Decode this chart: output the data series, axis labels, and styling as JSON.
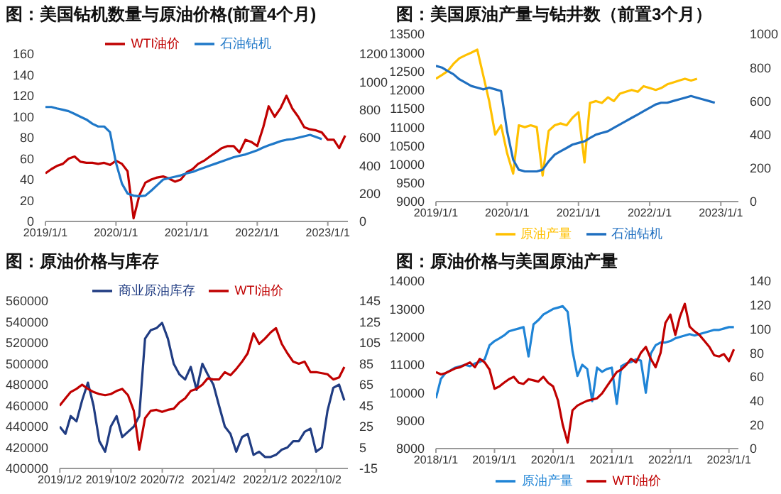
{
  "chart_data": [
    {
      "type": "line",
      "title": "图：美国钻机数量与原油价格(前置4个月)",
      "legend": "top",
      "x": [
        "2019-01",
        "2019-02",
        "2019-03",
        "2019-04",
        "2019-05",
        "2019-06",
        "2019-07",
        "2019-08",
        "2019-09",
        "2019-10",
        "2019-11",
        "2019-12",
        "2020-01",
        "2020-02",
        "2020-03",
        "2020-04",
        "2020-05",
        "2020-06",
        "2020-07",
        "2020-08",
        "2020-09",
        "2020-10",
        "2020-11",
        "2020-12",
        "2021-01",
        "2021-02",
        "2021-03",
        "2021-04",
        "2021-05",
        "2021-06",
        "2021-07",
        "2021-08",
        "2021-09",
        "2021-10",
        "2021-11",
        "2021-12",
        "2022-01",
        "2022-02",
        "2022-03",
        "2022-04",
        "2022-05",
        "2022-06",
        "2022-07",
        "2022-08",
        "2022-09",
        "2022-10",
        "2022-11",
        "2022-12",
        "2023-01",
        "2023-02",
        "2023-03",
        "2023-04"
      ],
      "xlim": [
        "2019-01-01",
        "2023-04-15"
      ],
      "xticks": [
        {
          "value": "2019-01-01",
          "label": "2019/1/1"
        },
        {
          "value": "2020-01-01",
          "label": "2020/1/1"
        },
        {
          "value": "2021-01-01",
          "label": "2021/1/1"
        },
        {
          "value": "2022-01-01",
          "label": "2022/1/1"
        },
        {
          "value": "2023-01-01",
          "label": "2023/1/1"
        }
      ],
      "ylim": [
        0,
        160
      ],
      "yticks": [
        0,
        20,
        40,
        60,
        80,
        100,
        120,
        140,
        160
      ],
      "y2lim": [
        0,
        1200
      ],
      "y2ticks": [
        0,
        200,
        400,
        600,
        800,
        1000,
        1200
      ],
      "series": [
        {
          "name": "WTI油价",
          "color": "#c00000",
          "values": [
            46,
            50,
            53,
            55,
            60,
            62,
            57,
            56,
            56,
            55,
            56,
            54,
            58,
            55,
            48,
            3,
            25,
            37,
            40,
            42,
            43,
            41,
            38,
            40,
            47,
            50,
            55,
            58,
            62,
            66,
            70,
            72,
            72,
            66,
            78,
            76,
            72,
            90,
            110,
            100,
            108,
            120,
            108,
            100,
            90,
            88,
            87,
            85,
            78,
            78,
            70,
            82
          ]
        },
        {
          "name": "石油钻机",
          "color": "#1f78c8",
          "axis": "y2",
          "values": [
            820,
            820,
            810,
            800,
            790,
            770,
            750,
            730,
            700,
            680,
            680,
            640,
            420,
            270,
            200,
            185,
            180,
            185,
            220,
            260,
            300,
            310,
            320,
            330,
            345,
            355,
            370,
            385,
            400,
            415,
            430,
            445,
            460,
            470,
            480,
            495,
            510,
            530,
            545,
            560,
            575,
            585,
            590,
            600,
            610,
            620,
            605,
            590,
            null,
            null,
            null,
            null
          ]
        }
      ]
    },
    {
      "type": "line",
      "title": "图：美国原油产量与钻井数（前置3个月）",
      "legend": "bottom",
      "x": [
        "2019-01",
        "2019-02",
        "2019-03",
        "2019-04",
        "2019-05",
        "2019-06",
        "2019-07",
        "2019-08",
        "2019-09",
        "2019-10",
        "2019-11",
        "2019-12",
        "2020-01",
        "2020-02",
        "2020-03",
        "2020-04",
        "2020-05",
        "2020-06",
        "2020-07",
        "2020-08",
        "2020-09",
        "2020-10",
        "2020-11",
        "2020-12",
        "2021-01",
        "2021-02",
        "2021-03",
        "2021-04",
        "2021-05",
        "2021-06",
        "2021-07",
        "2021-08",
        "2021-09",
        "2021-10",
        "2021-11",
        "2021-12",
        "2022-01",
        "2022-02",
        "2022-03",
        "2022-04",
        "2022-05",
        "2022-06",
        "2022-07",
        "2022-08",
        "2022-09",
        "2022-10",
        "2022-11",
        "2022-12"
      ],
      "xlim": [
        "2019-01-01",
        "2023-04-01"
      ],
      "xticks": [
        {
          "value": "2019-01-01",
          "label": "2019/1/1"
        },
        {
          "value": "2020-01-01",
          "label": "2020/1/1"
        },
        {
          "value": "2021-01-01",
          "label": "2021/1/1"
        },
        {
          "value": "2022-01-01",
          "label": "2022/1/1"
        },
        {
          "value": "2023-01-01",
          "label": "2023/1/1"
        }
      ],
      "ylim": [
        9000,
        13500
      ],
      "yticks": [
        9000,
        9500,
        10000,
        10500,
        11000,
        11500,
        12000,
        12500,
        13000,
        13500
      ],
      "y2lim": [
        0,
        1000
      ],
      "y2ticks": [
        0,
        200,
        400,
        600,
        800,
        1000
      ],
      "series": [
        {
          "name": "原油产量",
          "color": "#ffc000",
          "values": [
            12300,
            12400,
            12500,
            12700,
            12850,
            12930,
            13000,
            13080,
            12380,
            11700,
            10800,
            11050,
            10300,
            9750,
            11050,
            11000,
            11050,
            11000,
            9700,
            10900,
            11050,
            11100,
            11050,
            11250,
            11400,
            10050,
            11650,
            11700,
            11650,
            11800,
            11700,
            11900,
            11950,
            12000,
            11950,
            12100,
            12050,
            12000,
            12050,
            12150,
            12200,
            12250,
            12300,
            12250,
            12300,
            null,
            null,
            null
          ]
        },
        {
          "name": "石油钻机",
          "color": "#1f6fc0",
          "axis": "y2",
          "values": [
            810,
            800,
            780,
            760,
            730,
            710,
            690,
            680,
            670,
            680,
            670,
            660,
            420,
            250,
            190,
            180,
            180,
            180,
            190,
            240,
            280,
            300,
            320,
            340,
            350,
            360,
            380,
            400,
            410,
            420,
            440,
            460,
            480,
            500,
            520,
            540,
            560,
            580,
            590,
            590,
            600,
            610,
            620,
            630,
            620,
            610,
            600,
            590
          ]
        }
      ]
    },
    {
      "type": "line",
      "title": "图：原油价格与库存",
      "legend": "top",
      "x": [
        "2019-01",
        "2019-02",
        "2019-03",
        "2019-04",
        "2019-05",
        "2019-06",
        "2019-07",
        "2019-08",
        "2019-09",
        "2019-10",
        "2019-11",
        "2019-12",
        "2020-01",
        "2020-02",
        "2020-03",
        "2020-04",
        "2020-05",
        "2020-06",
        "2020-07",
        "2020-08",
        "2020-09",
        "2020-10",
        "2020-11",
        "2020-12",
        "2021-01",
        "2021-02",
        "2021-03",
        "2021-04",
        "2021-05",
        "2021-06",
        "2021-07",
        "2021-08",
        "2021-09",
        "2021-10",
        "2021-11",
        "2021-12",
        "2022-01",
        "2022-02",
        "2022-03",
        "2022-04",
        "2022-05",
        "2022-06",
        "2022-07",
        "2022-08",
        "2022-09",
        "2022-10",
        "2022-11",
        "2022-12",
        "2023-01",
        "2023-02",
        "2023-03"
      ],
      "xlim": [
        "2019-01-01",
        "2023-03-20"
      ],
      "xticks": [
        {
          "value": "2019-01-02",
          "label": "2019/1/2"
        },
        {
          "value": "2019-10-02",
          "label": "2019/10/2"
        },
        {
          "value": "2020-07-02",
          "label": "2020/7/2"
        },
        {
          "value": "2021-04-02",
          "label": "2021/4/2"
        },
        {
          "value": "2022-01-02",
          "label": "2022/1/2"
        },
        {
          "value": "2022-10-02",
          "label": "2022/10/2"
        }
      ],
      "ylim": [
        400000,
        560000
      ],
      "yticks": [
        400000,
        420000,
        440000,
        460000,
        480000,
        500000,
        520000,
        540000,
        560000
      ],
      "y2lim": [
        -15,
        145
      ],
      "y2ticks": [
        -15,
        5,
        25,
        45,
        65,
        85,
        105,
        125,
        145
      ],
      "series": [
        {
          "name": "商业原油库存",
          "color": "#203c82",
          "values": [
            440000,
            433000,
            450000,
            445000,
            465000,
            482000,
            460000,
            426000,
            416000,
            440000,
            450000,
            430000,
            435000,
            440000,
            450000,
            524000,
            532000,
            534000,
            539000,
            524000,
            500000,
            490000,
            485000,
            497000,
            475000,
            500000,
            490000,
            480000,
            460000,
            440000,
            433000,
            416000,
            430000,
            433000,
            413000,
            416000,
            411000,
            411000,
            413000,
            418000,
            420000,
            426000,
            426000,
            435000,
            438000,
            416000,
            420000,
            455000,
            477000,
            480000,
            465000
          ]
        },
        {
          "name": "WTI油价",
          "color": "#c00000",
          "axis": "y2",
          "values": [
            45,
            52,
            58,
            61,
            65,
            61,
            58,
            56,
            55,
            56,
            59,
            61,
            55,
            40,
            3,
            33,
            40,
            41,
            39,
            41,
            42,
            48,
            52,
            59,
            61,
            65,
            71,
            70,
            70,
            77,
            74,
            80,
            87,
            95,
            114,
            104,
            109,
            115,
            119,
            104,
            95,
            87,
            85,
            87,
            77,
            77,
            76,
            75,
            70,
            72,
            82
          ]
        }
      ]
    },
    {
      "type": "line",
      "title": "图：原油价格与美国原油产量",
      "legend": "bottom",
      "x": [
        "2018-01",
        "2018-02",
        "2018-03",
        "2018-04",
        "2018-05",
        "2018-06",
        "2018-07",
        "2018-08",
        "2018-09",
        "2018-10",
        "2018-11",
        "2018-12",
        "2019-01",
        "2019-02",
        "2019-03",
        "2019-04",
        "2019-05",
        "2019-06",
        "2019-07",
        "2019-08",
        "2019-09",
        "2019-10",
        "2019-11",
        "2019-12",
        "2020-01",
        "2020-02",
        "2020-03",
        "2020-04",
        "2020-05",
        "2020-06",
        "2020-07",
        "2020-08",
        "2020-09",
        "2020-10",
        "2020-11",
        "2020-12",
        "2021-01",
        "2021-02",
        "2021-03",
        "2021-04",
        "2021-05",
        "2021-06",
        "2021-07",
        "2021-08",
        "2021-09",
        "2021-10",
        "2021-11",
        "2021-12",
        "2022-01",
        "2022-02",
        "2022-03",
        "2022-04",
        "2022-05",
        "2022-06",
        "2022-07",
        "2022-08",
        "2022-09",
        "2022-10",
        "2022-11",
        "2022-12",
        "2023-01",
        "2023-02"
      ],
      "xlim": [
        "2018-01-01",
        "2023-03-01"
      ],
      "xticks": [
        {
          "value": "2018-01-01",
          "label": "2018/1/1"
        },
        {
          "value": "2019-01-01",
          "label": "2019/1/1"
        },
        {
          "value": "2020-01-01",
          "label": "2020/1/1"
        },
        {
          "value": "2021-01-01",
          "label": "2021/1/1"
        },
        {
          "value": "2022-01-01",
          "label": "2022/1/1"
        },
        {
          "value": "2023-01-01",
          "label": "2023/1/1"
        }
      ],
      "ylim": [
        8000,
        14000
      ],
      "yticks": [
        8000,
        9000,
        10000,
        11000,
        12000,
        13000,
        14000
      ],
      "y2lim": [
        0,
        140
      ],
      "y2ticks": [
        0,
        20,
        40,
        60,
        80,
        100,
        120,
        140
      ],
      "series": [
        {
          "name": "原油产量",
          "color": "#1f84d6",
          "values": [
            9800,
            10500,
            10700,
            10800,
            10900,
            10950,
            11000,
            10950,
            11050,
            11100,
            11200,
            11700,
            11850,
            11950,
            12050,
            12200,
            12250,
            12300,
            12350,
            11300,
            12450,
            12600,
            12800,
            12900,
            13000,
            13050,
            13100,
            12900,
            11500,
            10600,
            11000,
            10850,
            9700,
            10900,
            10750,
            10850,
            10900,
            9600,
            10950,
            11050,
            11100,
            11200,
            11150,
            10000,
            11400,
            11700,
            11800,
            11800,
            11850,
            11950,
            12000,
            12050,
            12100,
            12050,
            12100,
            12150,
            12200,
            12250,
            12250,
            12300,
            12350,
            12350
          ]
        },
        {
          "name": "WTI油价",
          "color": "#c00000",
          "axis": "y2",
          "values": [
            64,
            62,
            63,
            65,
            67,
            68,
            70,
            72,
            68,
            75,
            72,
            66,
            50,
            52,
            55,
            58,
            60,
            55,
            54,
            58,
            57,
            56,
            60,
            55,
            52,
            40,
            20,
            5,
            32,
            36,
            38,
            40,
            41,
            42,
            46,
            52,
            58,
            64,
            66,
            70,
            75,
            72,
            80,
            85,
            75,
            68,
            80,
            105,
            112,
            95,
            110,
            121,
            102,
            98,
            95,
            90,
            85,
            78,
            77,
            79,
            73,
            83
          ]
        }
      ]
    }
  ]
}
